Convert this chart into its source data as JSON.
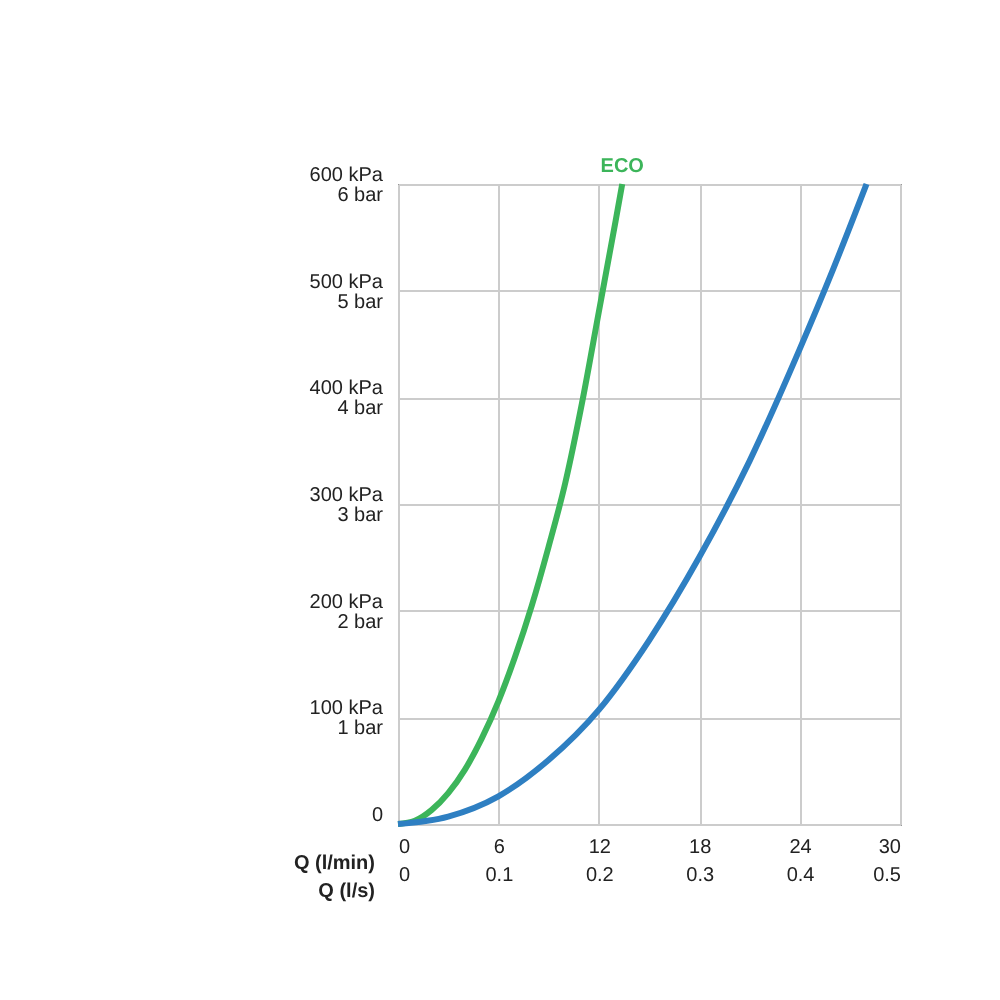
{
  "chart_data": {
    "type": "line",
    "xlabel": "Q (l/min)",
    "x2label": "Q (l/s)",
    "xlim": [
      0,
      30
    ],
    "xticks": [
      0,
      6,
      12,
      18,
      24,
      30
    ],
    "x2lim": [
      0,
      0.5
    ],
    "x2ticks": [
      0,
      0.1,
      0.2,
      0.3,
      0.4,
      0.5
    ],
    "ylim": [
      0,
      600
    ],
    "yticks": [
      0,
      {
        "value": 100,
        "label": "100 kPa"
      },
      {
        "value": 200,
        "label": "200 kPa"
      },
      {
        "value": 300,
        "label": "300 kPa"
      },
      {
        "value": 400,
        "label": "400 kPa"
      },
      {
        "value": 500,
        "label": "500 kPa"
      },
      {
        "value": 600,
        "label": "600 kPa"
      }
    ],
    "y2lim": [
      0,
      6
    ],
    "y2ticks": [
      {
        "value": 1,
        "label": "1 bar"
      },
      {
        "value": 2,
        "label": "2 bar"
      },
      {
        "value": 3,
        "label": "3 bar"
      },
      {
        "value": 4,
        "label": "4 bar"
      },
      {
        "value": 5,
        "label": "5 bar"
      },
      {
        "value": 6,
        "label": "6 bar"
      }
    ],
    "grid": true,
    "legend": false,
    "series": [
      {
        "name": "ECO",
        "color": "#3cb55a",
        "x": [
          0,
          1,
          2,
          3,
          4,
          5,
          6,
          7,
          8,
          9,
          10,
          11,
          12,
          13,
          13.4
        ],
        "values": [
          0,
          3,
          13,
          29,
          51,
          80,
          115,
          157,
          205,
          260,
          320,
          395,
          480,
          565,
          600
        ]
      },
      {
        "color": "#2e7fc2",
        "x": [
          0,
          3,
          6,
          9,
          12,
          15,
          18,
          21,
          24,
          26,
          28
        ],
        "values": [
          0,
          7,
          26,
          60,
          107,
          172,
          250,
          340,
          445,
          520,
          600
        ]
      }
    ]
  }
}
